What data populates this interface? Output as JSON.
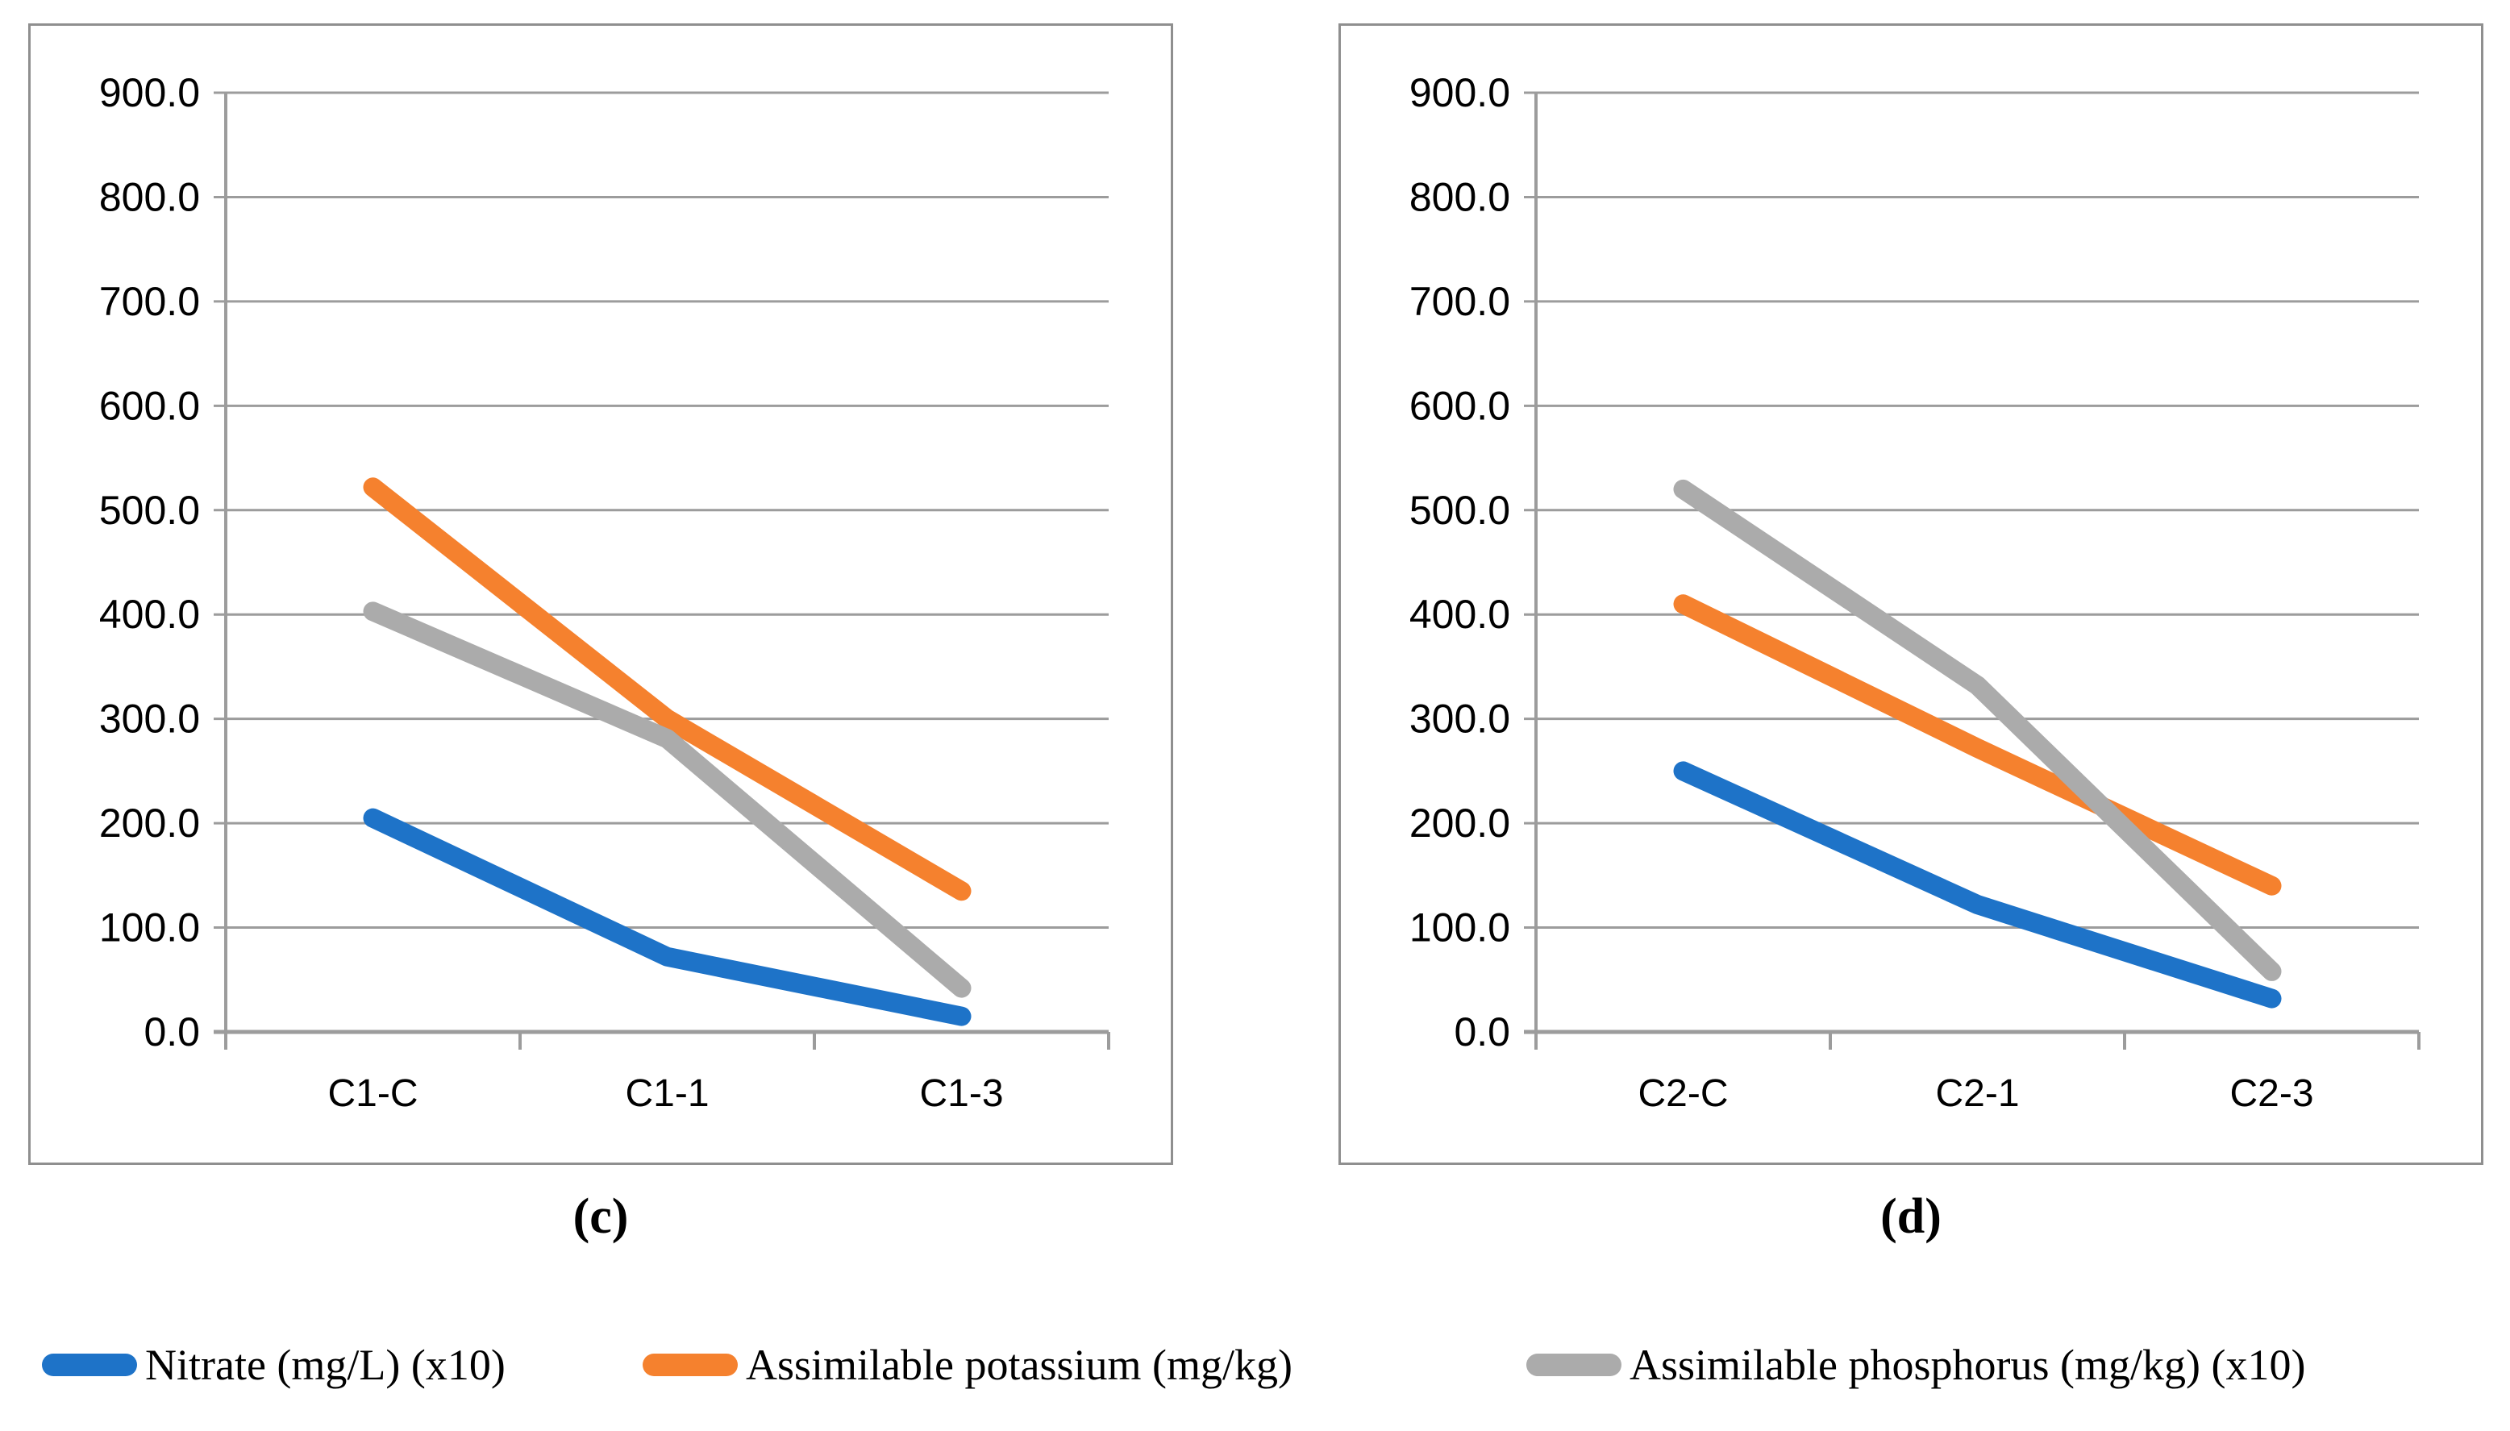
{
  "figure": {
    "background": "#FFFFFF"
  },
  "y_axis": {
    "min": 0,
    "max": 900,
    "step": 100,
    "tick_labels": [
      "900.0",
      "800.0",
      "700.0",
      "600.0",
      "500.0",
      "400.0",
      "300.0",
      "200.0",
      "100.0",
      "0.0"
    ]
  },
  "chart_data": [
    {
      "type": "line",
      "caption": "(c)",
      "categories": [
        "C1-C",
        "C1-1",
        "C1-3"
      ],
      "ylim": [
        0,
        900
      ],
      "grid": true,
      "legend_position": "bottom",
      "series": [
        {
          "name": "Nitrate (mg/L) (x10)",
          "color": "#1E73C8",
          "values": [
            205,
            72,
            15
          ]
        },
        {
          "name": "Assimilable potassium (mg/kg)",
          "color": "#F5812E",
          "values": [
            522,
            300,
            135
          ]
        },
        {
          "name": "Assimilable phosphorus (mg/kg) (x10)",
          "color": "#ABABAB",
          "values": [
            403,
            281,
            42
          ]
        }
      ]
    },
    {
      "type": "line",
      "caption": "(d)",
      "categories": [
        "C2-C",
        "C2-1",
        "C2-3"
      ],
      "ylim": [
        0,
        900
      ],
      "grid": true,
      "legend_position": "bottom",
      "series": [
        {
          "name": "Nitrate (mg/L) (x10)",
          "color": "#1E73C8",
          "values": [
            250,
            122,
            32
          ]
        },
        {
          "name": "Assimilable potassium (mg/kg)",
          "color": "#F5812E",
          "values": [
            410,
            272,
            140
          ]
        },
        {
          "name": "Assimilable phosphorus (mg/kg) (x10)",
          "color": "#ABABAB",
          "values": [
            520,
            332,
            58
          ]
        }
      ]
    }
  ],
  "legend": {
    "items": [
      {
        "label": "Nitrate (mg/L) (x10)",
        "color": "#1E73C8"
      },
      {
        "label": "Assimilable potassium (mg/kg)",
        "color": "#F5812E"
      },
      {
        "label": "Assimilable phosphorus (mg/kg) (x10)",
        "color": "#ABABAB"
      }
    ]
  },
  "colors": {
    "gridline": "#9C9C9C",
    "panel_border": "#8F8F8F",
    "text": "#000000"
  }
}
